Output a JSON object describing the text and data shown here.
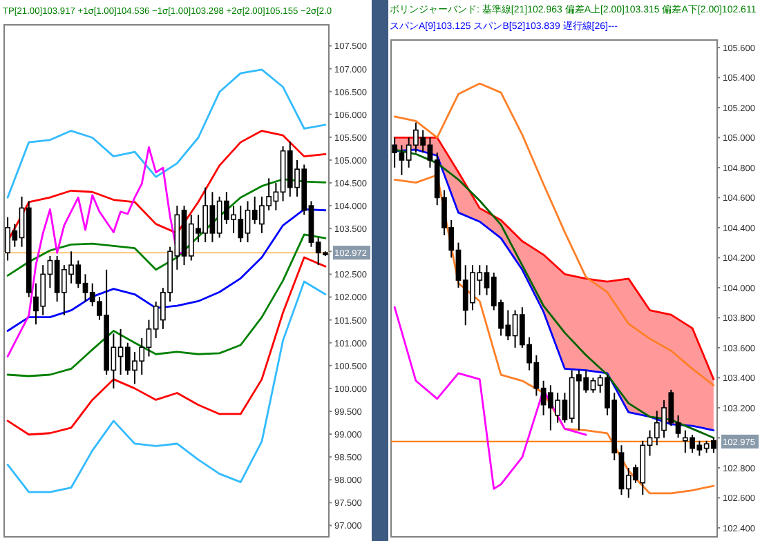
{
  "chart_data": [
    {
      "type": "candlestick",
      "title": "TP[21.00]103.917 +1σ[1.00]104.536 −1σ[1.00]103.298 +2σ[2.00]105.155 −2σ[2.0",
      "tick_labels": "y",
      "categories": [
        null,
        null,
        null,
        null,
        null,
        null,
        null,
        null,
        null,
        null,
        null,
        null,
        null,
        null,
        null,
        null,
        null,
        null,
        null,
        null,
        null,
        null,
        null,
        null,
        null,
        null,
        null,
        null,
        null,
        null,
        null,
        null,
        null,
        null,
        null,
        null,
        null,
        null,
        null,
        null,
        null,
        null,
        null,
        null,
        null,
        null
      ],
      "ohlc": [
        [
          102.97,
          103.75,
          102.8,
          103.52
        ],
        [
          103.45,
          103.6,
          103.1,
          103.25
        ],
        [
          103.3,
          104.2,
          103.1,
          103.95
        ],
        [
          103.95,
          104.1,
          102.0,
          102.1
        ],
        [
          102.0,
          102.3,
          101.4,
          101.7
        ],
        [
          101.8,
          102.7,
          101.6,
          102.5
        ],
        [
          102.5,
          102.9,
          102.2,
          102.8
        ],
        [
          102.8,
          102.9,
          101.9,
          102.1
        ],
        [
          102.1,
          102.7,
          101.6,
          102.6
        ],
        [
          102.5,
          103.0,
          102.3,
          102.7
        ],
        [
          102.7,
          102.8,
          102.2,
          102.3
        ],
        [
          102.3,
          102.5,
          101.9,
          102.1
        ],
        [
          102.1,
          102.3,
          101.8,
          101.9
        ],
        [
          101.9,
          102.0,
          101.5,
          101.6
        ],
        [
          101.6,
          102.6,
          100.3,
          100.4
        ],
        [
          100.4,
          101.2,
          100.0,
          100.9
        ],
        [
          100.7,
          101.3,
          100.3,
          100.9
        ],
        [
          100.9,
          101.0,
          100.3,
          100.4
        ],
        [
          100.4,
          100.8,
          100.1,
          100.6
        ],
        [
          100.6,
          101.1,
          100.3,
          100.9
        ],
        [
          100.9,
          101.5,
          100.7,
          101.3
        ],
        [
          101.3,
          101.9,
          101.1,
          101.8
        ],
        [
          101.5,
          102.2,
          101.3,
          102.1
        ],
        [
          102.1,
          103.1,
          101.9,
          103.0
        ],
        [
          102.9,
          104.0,
          102.6,
          103.8
        ],
        [
          103.9,
          104.0,
          102.7,
          102.9
        ],
        [
          102.9,
          103.8,
          102.8,
          103.6
        ],
        [
          103.5,
          103.8,
          103.2,
          103.4
        ],
        [
          103.4,
          104.4,
          103.2,
          104.0
        ],
        [
          104.0,
          104.3,
          103.2,
          103.4
        ],
        [
          103.4,
          104.2,
          103.3,
          104.1
        ],
        [
          104.1,
          104.3,
          103.6,
          103.7
        ],
        [
          103.7,
          104.0,
          103.4,
          103.8
        ],
        [
          103.7,
          104.0,
          103.2,
          103.3
        ],
        [
          103.4,
          104.1,
          103.2,
          103.9
        ],
        [
          103.9,
          104.2,
          103.6,
          103.7
        ],
        [
          103.6,
          104.2,
          103.4,
          104.0
        ],
        [
          104.0,
          104.6,
          103.9,
          104.2
        ],
        [
          104.1,
          104.5,
          103.9,
          104.3
        ],
        [
          104.3,
          105.3,
          104.1,
          105.2
        ],
        [
          105.2,
          105.4,
          104.2,
          104.4
        ],
        [
          104.4,
          105.0,
          104.2,
          104.8
        ],
        [
          104.8,
          104.9,
          103.8,
          103.9
        ],
        [
          104.0,
          104.1,
          103.1,
          103.2
        ],
        [
          103.2,
          103.3,
          102.7,
          102.97
        ],
        [
          102.97,
          103.0,
          102.9,
          102.93
        ]
      ],
      "series": [
        {
          "type": "line",
          "color": "#33bbff",
          "values": [
            104.18,
            null,
            null,
            105.39,
            null,
            null,
            105.44,
            null,
            null,
            105.64,
            null,
            null,
            105.49,
            null,
            null,
            105.08,
            null,
            null,
            105.18,
            null,
            null,
            104.63,
            null,
            null,
            104.93,
            null,
            null,
            105.49,
            null,
            null,
            106.49,
            null,
            null,
            106.9,
            null,
            null,
            106.98,
            null,
            null,
            106.6,
            null,
            null,
            105.69,
            null,
            null,
            105.77
          ]
        },
        {
          "type": "line",
          "color": "#ff0000",
          "values": [
            103.22,
            null,
            null,
            104.08,
            null,
            null,
            104.18,
            null,
            null,
            104.33,
            null,
            null,
            104.3,
            null,
            null,
            104.13,
            null,
            null,
            104.08,
            null,
            null,
            103.6,
            null,
            null,
            103.4,
            null,
            null,
            104.08,
            null,
            null,
            104.88,
            null,
            null,
            105.39,
            null,
            null,
            105.64,
            null,
            null,
            105.54,
            null,
            null,
            105.08,
            null,
            null,
            105.13
          ]
        },
        {
          "type": "line",
          "color": "#008000",
          "values": [
            102.47,
            null,
            null,
            102.77,
            null,
            null,
            103.02,
            null,
            null,
            103.15,
            null,
            null,
            103.17,
            null,
            null,
            103.12,
            null,
            null,
            103.07,
            null,
            null,
            102.6,
            null,
            null,
            102.87,
            null,
            null,
            103.32,
            null,
            null,
            103.77,
            null,
            null,
            104.18,
            null,
            null,
            104.43,
            null,
            null,
            104.58,
            null,
            null,
            104.53,
            null,
            null,
            104.51
          ]
        },
        {
          "type": "line",
          "color": "#0000ff",
          "values": [
            101.26,
            null,
            null,
            101.56,
            null,
            null,
            101.56,
            null,
            null,
            101.71,
            null,
            null,
            102.01,
            null,
            null,
            102.18,
            null,
            null,
            102.06,
            null,
            null,
            101.76,
            null,
            null,
            101.81,
            null,
            null,
            101.91,
            null,
            null,
            102.11,
            null,
            null,
            102.41,
            null,
            null,
            102.87,
            null,
            null,
            103.57,
            null,
            null,
            103.92,
            null,
            null,
            103.9
          ]
        },
        {
          "type": "line",
          "color": "#008000",
          "values": [
            100.3,
            null,
            null,
            100.27,
            null,
            null,
            100.3,
            null,
            null,
            100.43,
            null,
            null,
            100.85,
            null,
            null,
            101.26,
            null,
            null,
            101.0,
            null,
            null,
            100.75,
            null,
            null,
            100.8,
            null,
            null,
            100.75,
            null,
            null,
            100.77,
            null,
            null,
            100.95,
            null,
            null,
            101.56,
            null,
            null,
            102.36,
            null,
            null,
            103.37,
            null,
            null,
            103.29
          ]
        },
        {
          "type": "line",
          "color": "#ff0000",
          "values": [
            99.29,
            null,
            null,
            98.99,
            null,
            null,
            99.02,
            null,
            null,
            99.14,
            null,
            null,
            99.75,
            null,
            null,
            100.2,
            null,
            null,
            100.0,
            null,
            null,
            99.75,
            null,
            null,
            99.9,
            null,
            null,
            99.64,
            null,
            null,
            99.44,
            null,
            null,
            99.44,
            null,
            null,
            100.2,
            null,
            null,
            101.66,
            null,
            null,
            102.87,
            null,
            null,
            102.67
          ]
        },
        {
          "type": "line",
          "color": "#33bbff",
          "values": [
            98.33,
            null,
            null,
            97.73,
            null,
            null,
            97.73,
            null,
            null,
            97.83,
            null,
            null,
            98.64,
            null,
            null,
            99.29,
            null,
            null,
            98.79,
            null,
            null,
            98.74,
            null,
            null,
            98.79,
            null,
            null,
            98.44,
            null,
            null,
            98.13,
            null,
            null,
            97.95,
            null,
            null,
            98.84,
            null,
            null,
            101.05,
            null,
            null,
            102.34,
            null,
            null,
            102.06
          ]
        },
        {
          "type": "line",
          "color": "#ff00ff",
          "values": [
            100.7,
            null,
            null,
            101.6,
            102.7,
            103.4,
            103.92,
            102.97,
            103.57,
            null,
            104.18,
            103.47,
            104.23,
            103.87,
            null,
            103.42,
            103.87,
            103.82,
            104.18,
            104.48,
            105.28,
            104.73,
            104.83,
            103.77,
            102.97,
            102.97,
            null,
            null,
            null,
            null,
            null,
            null,
            null,
            null,
            null,
            null,
            null,
            null,
            null,
            null,
            null,
            null,
            null,
            null,
            null,
            null
          ]
        }
      ],
      "ylim": [
        96.75,
        107.96
      ],
      "yticks": [
        {
          "value": 97,
          "label": "97.000"
        },
        {
          "value": 97.5,
          "label": "97.500"
        },
        {
          "value": 98,
          "label": "98.000"
        },
        {
          "value": 98.5,
          "label": "98.500"
        },
        {
          "value": 99,
          "label": "99.000"
        },
        {
          "value": 99.5,
          "label": "99.500"
        },
        {
          "value": 100,
          "label": "100.000"
        },
        {
          "value": 100.5,
          "label": "100.500"
        },
        {
          "value": 101,
          "label": "101.000"
        },
        {
          "value": 101.5,
          "label": "101.500"
        },
        {
          "value": 102,
          "label": "102.000"
        },
        {
          "value": 102.5,
          "label": "102.500"
        },
        {
          "value": 103,
          "label": null
        },
        {
          "value": 103.5,
          "label": "103.500"
        },
        {
          "value": 104,
          "label": "104.000"
        },
        {
          "value": 104.5,
          "label": "104.500"
        },
        {
          "value": 105,
          "label": "105.000"
        },
        {
          "value": 105.5,
          "label": "105.500"
        },
        {
          "value": 106,
          "label": "106.000"
        },
        {
          "value": 106.5,
          "label": "106.500"
        },
        {
          "value": 107,
          "label": "107.000"
        },
        {
          "value": 107.5,
          "label": "107.500"
        }
      ],
      "ref_lines": [
        {
          "axis": "y",
          "value": 102.972,
          "label": "102.972",
          "color": "#ffcc88"
        }
      ]
    },
    {
      "type": "candlestick",
      "title": "ボリンジャーバンド: 基準線[21]102.963 偏差A上[2.00]103.315 偏差A下[2.00]102.611",
      "subtitle": "スパンA[9]103.125 スパンB[52]103.839 遅行線[26]---",
      "tick_labels": "y",
      "categories": [
        null,
        null,
        null,
        null,
        null,
        null,
        null,
        null,
        null,
        null,
        null,
        null,
        null,
        null,
        null,
        null,
        null,
        null,
        null,
        null,
        null,
        null,
        null,
        null,
        null,
        null,
        null,
        null,
        null,
        null,
        null,
        null,
        null,
        null,
        null,
        null,
        null,
        null,
        null,
        null,
        null,
        null,
        null,
        null,
        null,
        null
      ],
      "ohlc": [
        [
          104.95,
          105.0,
          104.8,
          104.9
        ],
        [
          104.9,
          104.95,
          104.75,
          104.85
        ],
        [
          104.85,
          105.0,
          104.8,
          104.95
        ],
        [
          104.95,
          105.1,
          104.9,
          105.05
        ],
        [
          105.0,
          105.05,
          104.9,
          104.95
        ],
        [
          104.95,
          105.0,
          104.8,
          104.85
        ],
        [
          104.85,
          104.9,
          104.55,
          104.6
        ],
        [
          104.6,
          104.65,
          104.35,
          104.4
        ],
        [
          104.4,
          104.45,
          104.2,
          104.25
        ],
        [
          104.25,
          104.3,
          104.0,
          104.05
        ],
        [
          104.05,
          104.15,
          103.75,
          103.85
        ],
        [
          103.9,
          104.15,
          103.85,
          104.1
        ],
        [
          104.05,
          104.15,
          103.95,
          104.1
        ],
        [
          104.1,
          104.15,
          103.95,
          104.0
        ],
        [
          104.07,
          104.1,
          103.85,
          103.88
        ],
        [
          103.9,
          103.92,
          103.68,
          103.73
        ],
        [
          103.75,
          103.85,
          103.65,
          103.68
        ],
        [
          103.68,
          103.85,
          103.6,
          103.82
        ],
        [
          103.82,
          103.87,
          103.6,
          103.62
        ],
        [
          103.62,
          103.67,
          103.45,
          103.5
        ],
        [
          103.5,
          103.55,
          103.28,
          103.33
        ],
        [
          103.33,
          103.38,
          103.15,
          103.22
        ],
        [
          103.3,
          103.35,
          103.05,
          103.2
        ],
        [
          103.15,
          103.3,
          103.1,
          103.25
        ],
        [
          103.25,
          103.3,
          103.1,
          103.12
        ],
        [
          103.13,
          103.45,
          103.1,
          103.4
        ],
        [
          103.42,
          103.45,
          103.05,
          103.38
        ],
        [
          103.4,
          103.45,
          103.3,
          103.32
        ],
        [
          103.32,
          103.4,
          103.3,
          103.38
        ],
        [
          103.35,
          103.42,
          103.3,
          103.4
        ],
        [
          103.4,
          103.42,
          103.15,
          103.2
        ],
        [
          103.25,
          103.3,
          102.85,
          102.9
        ],
        [
          102.9,
          102.95,
          102.62,
          102.66
        ],
        [
          102.66,
          102.8,
          102.6,
          102.75
        ],
        [
          102.8,
          102.82,
          102.7,
          102.72
        ],
        [
          102.7,
          102.98,
          102.62,
          102.95
        ],
        [
          102.95,
          103.05,
          102.88,
          103.0
        ],
        [
          103.0,
          103.18,
          102.95,
          103.1
        ],
        [
          103.05,
          103.25,
          103.0,
          103.2
        ],
        [
          103.3,
          103.32,
          103.08,
          103.1
        ],
        [
          103.1,
          103.15,
          103.0,
          103.03
        ],
        [
          102.98,
          103.05,
          102.9,
          103.0
        ],
        [
          103.0,
          103.02,
          102.9,
          102.93
        ],
        [
          102.95,
          102.98,
          102.88,
          102.92
        ],
        [
          102.93,
          102.98,
          102.9,
          102.96
        ],
        [
          102.98,
          103.0,
          102.9,
          102.93
        ]
      ],
      "series": [
        {
          "type": "line",
          "color": "#ff0000",
          "values": [
            105.0,
            null,
            null,
            105.0,
            null,
            null,
            105.0,
            null,
            null,
            104.77,
            null,
            null,
            104.53,
            null,
            null,
            104.45,
            null,
            null,
            104.31,
            null,
            null,
            104.22,
            null,
            null,
            104.09,
            null,
            null,
            104.06,
            null,
            null,
            104.04,
            null,
            null,
            104.06,
            null,
            null,
            103.85,
            null,
            null,
            103.82,
            null,
            null,
            103.73,
            null,
            null,
            103.39
          ],
          "lower": [
            104.91,
            null,
            null,
            104.92,
            null,
            null,
            104.88,
            null,
            null,
            104.5,
            null,
            null,
            104.44,
            null,
            null,
            104.33,
            null,
            null,
            104.12,
            null,
            null,
            103.84,
            null,
            null,
            103.46,
            null,
            null,
            103.45,
            null,
            null,
            103.43,
            null,
            null,
            103.17,
            null,
            null,
            103.14,
            null,
            null,
            103.09,
            null,
            null,
            103.08,
            null,
            null,
            103.05
          ],
          "upper": [
            105.0,
            null,
            null,
            105.0,
            null,
            null,
            105.0,
            null,
            null,
            104.77,
            null,
            null,
            104.53,
            null,
            null,
            104.45,
            null,
            null,
            104.31,
            null,
            null,
            104.22,
            null,
            null,
            104.09,
            null,
            null,
            104.06,
            null,
            null,
            104.04,
            null,
            null,
            104.06,
            null,
            null,
            103.85,
            null,
            null,
            103.82,
            null,
            null,
            103.73,
            null,
            null,
            103.39
          ]
        },
        {
          "type": "line",
          "color": "#0000ff",
          "values": [
            104.91,
            null,
            null,
            104.92,
            null,
            null,
            104.88,
            null,
            null,
            104.5,
            null,
            null,
            104.44,
            null,
            null,
            104.33,
            null,
            null,
            104.12,
            null,
            null,
            103.84,
            null,
            null,
            103.46,
            null,
            null,
            103.45,
            null,
            null,
            103.43,
            null,
            null,
            103.17,
            null,
            null,
            103.14,
            null,
            null,
            103.09,
            null,
            null,
            103.08,
            null,
            null,
            103.05
          ]
        },
        {
          "type": "line",
          "color": "#ff7f27",
          "values": [
            105.14,
            null,
            null,
            105.11,
            null,
            null,
            105.0,
            null,
            null,
            105.29,
            null,
            null,
            105.36,
            null,
            null,
            105.3,
            null,
            null,
            105.02,
            null,
            null,
            104.69,
            null,
            null,
            104.37,
            null,
            null,
            104.07,
            null,
            null,
            103.97,
            null,
            null,
            103.76,
            null,
            null,
            103.66,
            null,
            null,
            103.58,
            null,
            null,
            103.46,
            null,
            null,
            103.35
          ]
        },
        {
          "type": "line",
          "color": "#ff7f27",
          "values": [
            104.72,
            null,
            null,
            104.7,
            null,
            null,
            104.75,
            null,
            null,
            104.03,
            null,
            null,
            103.91,
            null,
            null,
            103.42,
            null,
            null,
            103.38,
            null,
            null,
            103.3,
            null,
            null,
            103.06,
            null,
            null,
            103.05,
            null,
            null,
            103.03,
            null,
            null,
            102.78,
            null,
            null,
            102.63,
            null,
            null,
            102.63,
            null,
            null,
            102.65,
            null,
            null,
            102.68
          ]
        },
        {
          "type": "line",
          "color": "#006400",
          "values": [
            104.92,
            null,
            null,
            104.89,
            null,
            null,
            104.83,
            null,
            null,
            104.72,
            null,
            null,
            104.58,
            null,
            null,
            104.42,
            null,
            null,
            104.15,
            null,
            null,
            103.88,
            null,
            null,
            103.7,
            null,
            null,
            103.55,
            null,
            null,
            103.42,
            null,
            null,
            103.23,
            null,
            null,
            103.14,
            null,
            null,
            103.12,
            null,
            null,
            103.06,
            null,
            null,
            103.0
          ]
        },
        {
          "type": "line",
          "color": "#ff00ff",
          "values": [
            103.87,
            null,
            null,
            103.38,
            null,
            null,
            103.26,
            null,
            null,
            103.43,
            null,
            null,
            103.39,
            null,
            102.66,
            102.69,
            null,
            null,
            102.87,
            null,
            null,
            103.32,
            null,
            null,
            103.06,
            null,
            null,
            103.02,
            null,
            null,
            null,
            null,
            null,
            null,
            null,
            null,
            null,
            null,
            null,
            null,
            null,
            null,
            null,
            null,
            null,
            null
          ]
        }
      ],
      "ylim": [
        102.34,
        105.65
      ],
      "yticks": [
        {
          "value": 102.4,
          "label": "102.400"
        },
        {
          "value": 102.6,
          "label": "102.600"
        },
        {
          "value": 102.8,
          "label": "102.800"
        },
        {
          "value": 103,
          "label": null
        },
        {
          "value": 103.2,
          "label": "103.200"
        },
        {
          "value": 103.4,
          "label": "103.400"
        },
        {
          "value": 103.6,
          "label": "103.600"
        },
        {
          "value": 103.8,
          "label": "103.800"
        },
        {
          "value": 104,
          "label": "104.000"
        },
        {
          "value": 104.2,
          "label": "104.200"
        },
        {
          "value": 104.4,
          "label": "104.400"
        },
        {
          "value": 104.6,
          "label": "104.600"
        },
        {
          "value": 104.8,
          "label": "104.800"
        },
        {
          "value": 105,
          "label": "105.000"
        },
        {
          "value": 105.2,
          "label": "105.200"
        },
        {
          "value": 105.4,
          "label": "105.400"
        },
        {
          "value": 105.6,
          "label": "105.600"
        }
      ],
      "ref_lines": [
        {
          "axis": "y",
          "value": 102.975,
          "label": "102.975",
          "color": "#ff8000"
        }
      ]
    }
  ]
}
